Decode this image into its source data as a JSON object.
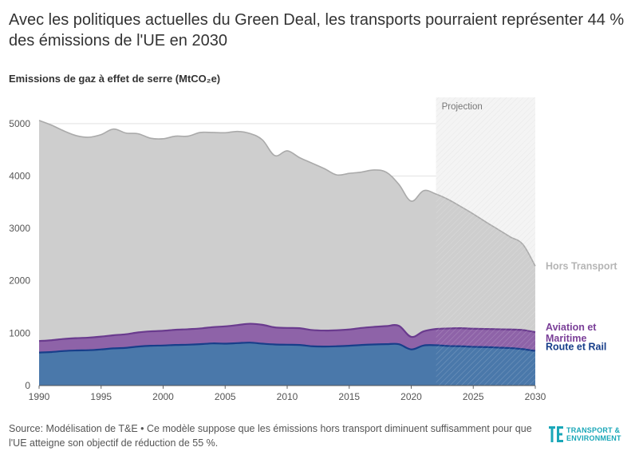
{
  "title": "Avec les politiques actuelles du Green Deal, les transports pourraient représenter 44 % des émissions de l'UE en 2030",
  "subtitle": "Emissions de gaz à effet de serre (MtCO₂e)",
  "footer": "Source: Modélisation de T&E • Ce modèle suppose que les émissions hors transport diminuent suffisamment pour que l'UE atteigne son objectif de réduction de 55 %.",
  "logo": {
    "line1": "TRANSPORT &",
    "line2": "ENVIRONMENT",
    "color": "#1aa7b8"
  },
  "chart_data": {
    "type": "area",
    "stacked": true,
    "title": "Avec les politiques actuelles du Green Deal, les transports pourraient représenter 44 % des émissions de l'UE en 2030",
    "ylabel": "Emissions de gaz à effet de serre (MtCO₂e)",
    "xlim": [
      1990,
      2030
    ],
    "ylim": [
      0,
      5500
    ],
    "x_ticks": [
      1990,
      1995,
      2000,
      2005,
      2010,
      2015,
      2020,
      2025,
      2030
    ],
    "y_ticks": [
      0,
      1000,
      2000,
      3000,
      4000,
      5000
    ],
    "grid": "horizontal",
    "projection": {
      "label": "Projection",
      "from": 2022,
      "to": 2030
    },
    "x": [
      1990,
      1991,
      1992,
      1993,
      1994,
      1995,
      1996,
      1997,
      1998,
      1999,
      2000,
      2001,
      2002,
      2003,
      2004,
      2005,
      2006,
      2007,
      2008,
      2009,
      2010,
      2011,
      2012,
      2013,
      2014,
      2015,
      2016,
      2017,
      2018,
      2019,
      2020,
      2021,
      2022,
      2023,
      2024,
      2025,
      2026,
      2027,
      2028,
      2029,
      2030
    ],
    "series": [
      {
        "name": "Route et Rail",
        "color": "#4a78aa",
        "line_color": "#173e8a",
        "values": [
          630,
          640,
          660,
          670,
          675,
          690,
          710,
          720,
          745,
          760,
          765,
          775,
          780,
          790,
          805,
          800,
          810,
          820,
          800,
          785,
          780,
          775,
          750,
          745,
          750,
          760,
          775,
          785,
          790,
          790,
          690,
          765,
          770,
          755,
          750,
          740,
          735,
          725,
          715,
          695,
          660
        ]
      },
      {
        "name": "Aviation et Maritime",
        "color": "#8e63a8",
        "line_color": "#6a3b8e",
        "values": [
          220,
          225,
          230,
          235,
          240,
          245,
          250,
          260,
          270,
          275,
          280,
          290,
          295,
          300,
          310,
          330,
          345,
          360,
          360,
          325,
          320,
          320,
          310,
          305,
          305,
          310,
          325,
          335,
          345,
          350,
          240,
          270,
          310,
          335,
          345,
          345,
          345,
          350,
          355,
          365,
          360
        ]
      },
      {
        "name": "Hors Transport",
        "color": "#cecece",
        "line_color": "#aaaaaa",
        "values": [
          4210,
          4105,
          3970,
          3865,
          3825,
          3855,
          3935,
          3840,
          3790,
          3685,
          3665,
          3695,
          3685,
          3740,
          3715,
          3695,
          3695,
          3630,
          3530,
          3280,
          3380,
          3255,
          3185,
          3090,
          2965,
          2980,
          2975,
          2995,
          2935,
          2700,
          2590,
          2685,
          2575,
          2460,
          2320,
          2190,
          2045,
          1905,
          1765,
          1635,
          1260
        ]
      }
    ]
  }
}
